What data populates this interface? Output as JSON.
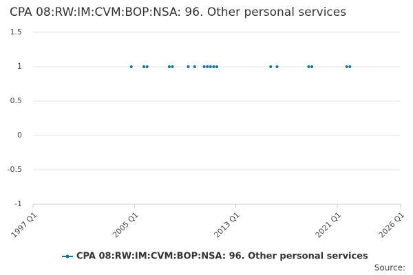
{
  "chart_data": {
    "type": "scatter",
    "title": "CPA 08:RW:IM:CVM:BOP:NSA: 96. Other personal services",
    "x": [
      "2004 Q4",
      "2005 Q4",
      "2006 Q1",
      "2007 Q4",
      "2008 Q1",
      "2009 Q2",
      "2009 Q4",
      "2010 Q3",
      "2010 Q4",
      "2011 Q1",
      "2011 Q2",
      "2011 Q3",
      "2015 Q4",
      "2016 Q2",
      "2018 Q4",
      "2019 Q1",
      "2021 Q4",
      "2022 Q1"
    ],
    "series": [
      {
        "name": "CPA 08:RW:IM:CVM:BOP:NSA: 96. Other personal services",
        "color": "#0075b0",
        "values": [
          1,
          1,
          1,
          1,
          1,
          1,
          1,
          1,
          1,
          1,
          1,
          1,
          1,
          1,
          1,
          1,
          1,
          1
        ]
      }
    ],
    "xlim": [
      "1997 Q1",
      "2026 Q1"
    ],
    "xticks": [
      "1997 Q1",
      "2005 Q1",
      "2013 Q1",
      "2021 Q1",
      "2026 Q1"
    ],
    "ylim": [
      -1,
      1.5
    ],
    "yticks": [
      1.5,
      1,
      0.5,
      0,
      -0.5,
      -1
    ],
    "grid": true,
    "source": "Source:"
  }
}
